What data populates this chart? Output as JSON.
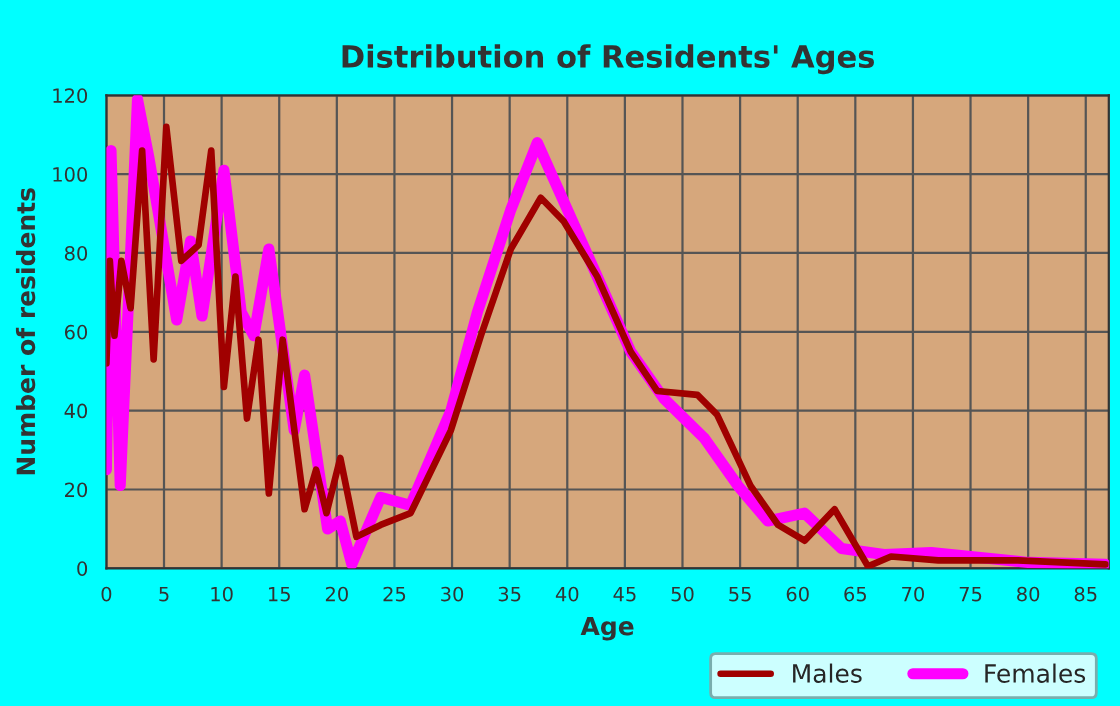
{
  "chart_data": {
    "type": "line",
    "title": "Distribution of Residents' Ages",
    "xlabel": "Age",
    "ylabel": "Number of residents",
    "series": [
      {
        "name": "Males",
        "color": "#a00000",
        "x": [
          0,
          0.3,
          0.7,
          1.3,
          2.1,
          3.1,
          4.1,
          5.2,
          6.5,
          8,
          9.1,
          10.2,
          11.2,
          12.2,
          13.2,
          14.1,
          15.3,
          17.2,
          18.2,
          19.1,
          20.3,
          21.7,
          23.8,
          26.4,
          29.9,
          32.5,
          35.1,
          37.7,
          39.7,
          42.6,
          45.5,
          47.8,
          51.3,
          53,
          55.9,
          58.3,
          60.6,
          63.2,
          66.1,
          68.1,
          72.2,
          79.1,
          86.7
        ],
        "values": [
          52,
          78,
          59,
          78,
          66,
          106,
          53,
          112,
          78,
          82,
          106,
          46,
          74,
          38,
          58,
          19,
          58,
          15,
          25,
          14,
          28,
          8,
          11,
          14,
          35,
          59,
          81,
          94,
          88,
          74,
          55,
          45,
          44,
          39,
          21,
          11,
          7,
          15,
          0.5,
          3,
          2,
          2,
          1
        ]
      },
      {
        "name": "Females",
        "color": "#ff00ff",
        "x": [
          0,
          0.4,
          1.2,
          2.7,
          3.7,
          6.1,
          7.3,
          8.3,
          10.2,
          11.7,
          12.8,
          14.1,
          16.3,
          17.2,
          19.2,
          20.3,
          21.3,
          23.8,
          26.4,
          29.9,
          32.2,
          35.1,
          37.4,
          39.7,
          42.6,
          45.5,
          48.4,
          51.9,
          54.8,
          57.4,
          60.6,
          63.8,
          67.5,
          71.6,
          80,
          86.7
        ],
        "values": [
          25,
          106,
          21,
          119,
          104,
          63,
          83,
          64,
          101,
          65,
          59,
          81,
          35,
          49,
          10,
          12,
          1,
          18,
          16,
          40,
          65,
          91,
          108,
          93,
          74,
          55,
          43,
          33,
          21,
          12,
          14,
          5,
          3.5,
          4,
          1.5,
          1
        ]
      }
    ],
    "xlim": [
      0,
      87
    ],
    "xticks": [
      0,
      5,
      10,
      15,
      20,
      25,
      30,
      35,
      40,
      45,
      50,
      55,
      60,
      65,
      70,
      75,
      80,
      85
    ],
    "ylim": [
      0,
      120
    ],
    "yticks": [
      0,
      20,
      40,
      60,
      80,
      100,
      120
    ],
    "grid": true,
    "legend": "bottom right",
    "marker": "none",
    "line_style": "solid"
  }
}
